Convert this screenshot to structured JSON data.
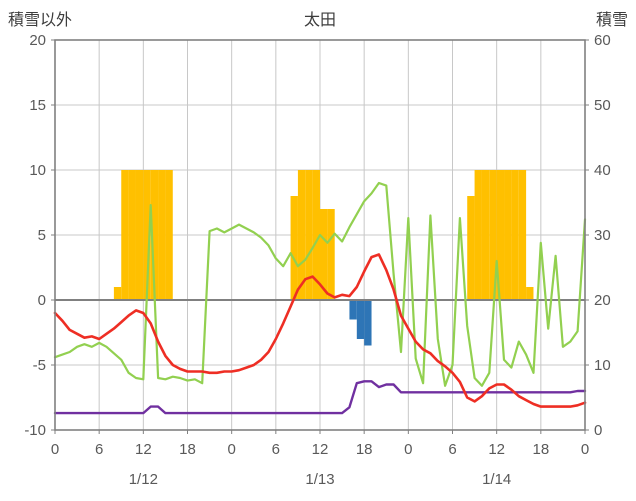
{
  "header": {
    "left_axis_title": "積雪以外",
    "station_title": "太田",
    "right_axis_title": "積雪"
  },
  "chart_data": {
    "type": "line",
    "title": "太田",
    "left_axis": {
      "title": "積雪以外",
      "min": -10,
      "max": 20,
      "tick_step": 5,
      "ticks": [
        20,
        15,
        10,
        5,
        0,
        -5,
        -10
      ]
    },
    "right_axis": {
      "title": "積雪",
      "min": 0,
      "max": 60,
      "tick_step": 10,
      "ticks": [
        60,
        50,
        40,
        30,
        20,
        10,
        0
      ]
    },
    "x_axis": {
      "total_hours": 72,
      "tick_interval": 6,
      "tick_labels": [
        "0",
        "6",
        "12",
        "18",
        "0",
        "6",
        "12",
        "18",
        "0",
        "6",
        "12",
        "18",
        "0"
      ],
      "day_labels": [
        {
          "label": "1/12",
          "center_hour": 12
        },
        {
          "label": "1/13",
          "center_hour": 36
        },
        {
          "label": "1/14",
          "center_hour": 60
        }
      ]
    },
    "grid": {
      "line_color": "#c8c8c8",
      "zero_line_color": "#808080",
      "border_color": "#808080",
      "tick_color": "#808080",
      "label_color": "#595959"
    },
    "series": [
      {
        "name": "orange-bars",
        "type": "bar",
        "axis": "left",
        "color": "#ffc000",
        "bars": [
          {
            "hour": 8,
            "value": 1
          },
          {
            "hour": 9,
            "value": 10
          },
          {
            "hour": 10,
            "value": 10
          },
          {
            "hour": 11,
            "value": 10
          },
          {
            "hour": 12,
            "value": 10
          },
          {
            "hour": 13,
            "value": 10
          },
          {
            "hour": 14,
            "value": 10
          },
          {
            "hour": 15,
            "value": 10
          },
          {
            "hour": 32,
            "value": 8
          },
          {
            "hour": 33,
            "value": 10
          },
          {
            "hour": 34,
            "value": 10
          },
          {
            "hour": 35,
            "value": 10
          },
          {
            "hour": 36,
            "value": 7
          },
          {
            "hour": 37,
            "value": 7
          },
          {
            "hour": 56,
            "value": 8
          },
          {
            "hour": 57,
            "value": 10
          },
          {
            "hour": 58,
            "value": 10
          },
          {
            "hour": 59,
            "value": 10
          },
          {
            "hour": 60,
            "value": 10
          },
          {
            "hour": 61,
            "value": 10
          },
          {
            "hour": 62,
            "value": 10
          },
          {
            "hour": 63,
            "value": 10
          },
          {
            "hour": 64,
            "value": 1
          }
        ]
      },
      {
        "name": "blue-bars",
        "type": "bar",
        "axis": "left",
        "color": "#2e75b6",
        "bars": [
          {
            "hour": 40,
            "value": -1.5
          },
          {
            "hour": 41,
            "value": -3.0
          },
          {
            "hour": 42,
            "value": -3.5
          }
        ]
      },
      {
        "name": "green-line",
        "type": "line",
        "axis": "left",
        "color": "#92d050",
        "values": [
          -4.4,
          -4.2,
          -4.0,
          -3.6,
          -3.4,
          -3.6,
          -3.3,
          -3.6,
          -4.1,
          -4.6,
          -5.6,
          -6.0,
          -6.1,
          7.3,
          -6.0,
          -6.1,
          -5.9,
          -6.0,
          -6.2,
          -6.1,
          -6.4,
          5.3,
          5.5,
          5.2,
          5.5,
          5.8,
          5.5,
          5.2,
          4.8,
          4.2,
          3.2,
          2.6,
          3.6,
          2.6,
          3.1,
          4.0,
          5.0,
          4.4,
          5.1,
          4.5,
          5.6,
          6.6,
          7.6,
          8.2,
          9.0,
          8.8,
          2.0,
          -4.0,
          6.3,
          -4.5,
          -6.4,
          6.5,
          -3.0,
          -6.6,
          -5.0,
          6.3,
          -2.0,
          -6.0,
          -6.6,
          -5.6,
          3.0,
          -4.6,
          -5.2,
          -3.2,
          -4.2,
          -5.6,
          4.4,
          -2.2,
          3.4,
          -3.6,
          -3.2,
          -2.4,
          6.2
        ]
      },
      {
        "name": "purple-line",
        "type": "line",
        "axis": "right",
        "color": "#7030a0",
        "values": [
          2.6,
          2.6,
          2.6,
          2.6,
          2.6,
          2.6,
          2.6,
          2.6,
          2.6,
          2.6,
          2.6,
          2.6,
          2.6,
          3.6,
          3.6,
          2.6,
          2.6,
          2.6,
          2.6,
          2.6,
          2.6,
          2.6,
          2.6,
          2.6,
          2.6,
          2.6,
          2.6,
          2.6,
          2.6,
          2.6,
          2.6,
          2.6,
          2.6,
          2.6,
          2.6,
          2.6,
          2.6,
          2.6,
          2.6,
          2.6,
          3.5,
          7.2,
          7.5,
          7.5,
          6.6,
          7.0,
          7.0,
          5.8,
          5.8,
          5.8,
          5.8,
          5.8,
          5.8,
          5.8,
          5.8,
          5.8,
          5.8,
          5.8,
          5.8,
          5.8,
          5.8,
          5.8,
          5.8,
          5.8,
          5.8,
          5.8,
          5.8,
          5.8,
          5.8,
          5.8,
          5.8,
          6.0,
          6.0
        ]
      },
      {
        "name": "red-line",
        "type": "line",
        "axis": "left",
        "color": "#ee2e24",
        "values": [
          -1.0,
          -1.6,
          -2.3,
          -2.6,
          -2.9,
          -2.8,
          -3.0,
          -2.6,
          -2.2,
          -1.7,
          -1.2,
          -0.8,
          -1.0,
          -1.8,
          -3.2,
          -4.3,
          -5.0,
          -5.3,
          -5.5,
          -5.5,
          -5.5,
          -5.6,
          -5.6,
          -5.5,
          -5.5,
          -5.4,
          -5.2,
          -5.0,
          -4.6,
          -4.0,
          -3.0,
          -1.8,
          -0.5,
          0.8,
          1.6,
          1.8,
          1.2,
          0.5,
          0.2,
          0.4,
          0.3,
          1.0,
          2.2,
          3.3,
          3.5,
          2.3,
          0.8,
          -1.2,
          -2.2,
          -3.2,
          -3.8,
          -4.1,
          -4.7,
          -5.1,
          -5.6,
          -6.3,
          -7.5,
          -7.8,
          -7.4,
          -6.8,
          -6.5,
          -6.5,
          -6.9,
          -7.4,
          -7.7,
          -8.0,
          -8.2,
          -8.2,
          -8.2,
          -8.2,
          -8.2,
          -8.1,
          -7.9
        ]
      }
    ]
  }
}
